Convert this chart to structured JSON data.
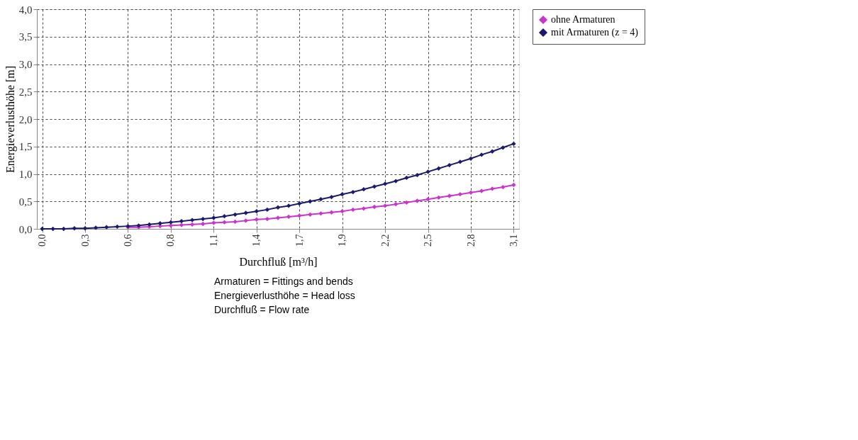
{
  "chart_data": {
    "type": "line",
    "xlabel": "Durchfluß [m³/h]",
    "ylabel": "Energieverlusthöhe [m]",
    "categories": [
      "0,0",
      null,
      null,
      null,
      "0,3",
      null,
      null,
      null,
      "0,6",
      null,
      null,
      null,
      "0,8",
      null,
      null,
      null,
      "1,1",
      null,
      null,
      null,
      "1,4",
      null,
      null,
      null,
      "1,7",
      null,
      null,
      null,
      "1,9",
      null,
      null,
      null,
      "2,2",
      null,
      null,
      null,
      "2,5",
      null,
      null,
      null,
      "2,8",
      null,
      null,
      null,
      "3,1"
    ],
    "series": [
      {
        "name": "ohne Armaturen",
        "color": "#cc33cc",
        "values": [
          null,
          null,
          null,
          null,
          null,
          null,
          null,
          null,
          0.03,
          0.03,
          0.04,
          0.05,
          0.06,
          0.07,
          0.08,
          0.09,
          0.11,
          0.12,
          0.13,
          0.15,
          0.17,
          0.18,
          0.2,
          0.22,
          0.24,
          0.26,
          0.28,
          0.3,
          0.32,
          0.35,
          0.37,
          0.4,
          0.42,
          0.45,
          0.48,
          0.51,
          0.54,
          0.57,
          0.6,
          0.63,
          0.66,
          0.69,
          0.73,
          0.76,
          0.8
        ]
      },
      {
        "name": "mit Armaturen (z = 4)",
        "color": "#1a1a6e",
        "values": [
          0,
          0.0,
          0.0,
          0.01,
          0.01,
          0.02,
          0.03,
          0.04,
          0.05,
          0.06,
          0.08,
          0.1,
          0.12,
          0.14,
          0.16,
          0.18,
          0.2,
          0.23,
          0.26,
          0.29,
          0.32,
          0.35,
          0.39,
          0.42,
          0.46,
          0.5,
          0.54,
          0.58,
          0.63,
          0.67,
          0.72,
          0.77,
          0.82,
          0.87,
          0.93,
          0.98,
          1.04,
          1.1,
          1.16,
          1.22,
          1.28,
          1.35,
          1.41,
          1.48,
          1.55
        ]
      }
    ],
    "ylim": [
      0,
      4
    ],
    "yticks": [
      {
        "value": 0,
        "label": "0,0"
      },
      {
        "value": 0.5,
        "label": "0,5"
      },
      {
        "value": 1,
        "label": "1,0"
      },
      {
        "value": 1.5,
        "label": "1,5"
      },
      {
        "value": 2,
        "label": "2,0"
      },
      {
        "value": 2.5,
        "label": "2,5"
      },
      {
        "value": 3,
        "label": "3,0"
      },
      {
        "value": 3.5,
        "label": "3,5"
      },
      {
        "value": 4,
        "label": "4,0"
      }
    ],
    "grid": true,
    "legend": "right",
    "marker": "diamond",
    "line_style": "solid",
    "annotations": [
      "Armaturen = Fittings and bends",
      "Energieverlusthöhe = Head loss",
      "Durchfluß = Flow rate"
    ]
  }
}
